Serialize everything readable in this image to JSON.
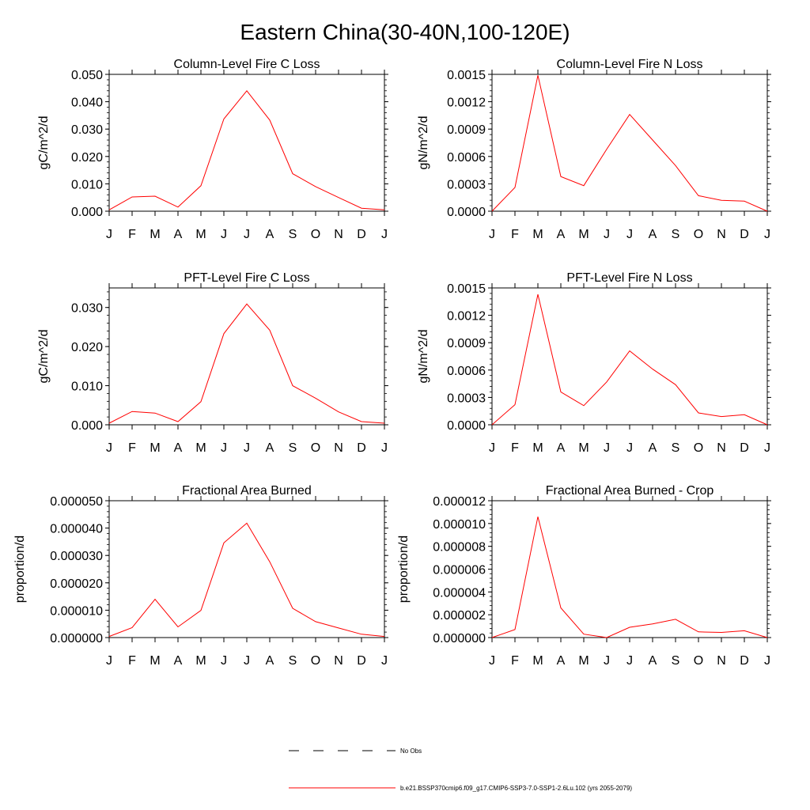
{
  "page_title": "Eastern China(30-40N,100-120E)",
  "legend": {
    "entries": [
      {
        "label": "No Obs",
        "color": "#000000",
        "style": "dashed"
      },
      {
        "label": "b.e21.BSSP370cmip6.f09_g17.CMIP6-SSP3-7.0-SSP1-2.6Lu.102 (yrs 2055-2079)",
        "color": "#ff0000",
        "style": "solid"
      }
    ]
  },
  "chart_data": [
    {
      "type": "line",
      "title": "Column-Level Fire C Loss",
      "ylabel": "gC/m^2/d",
      "xlabel": "",
      "ylim": [
        0,
        0.05
      ],
      "yticks": [
        0,
        0.01,
        0.02,
        0.03,
        0.04,
        0.05
      ],
      "ytick_labels": [
        "0.000",
        "0.010",
        "0.020",
        "0.030",
        "0.040",
        "0.050"
      ],
      "categories": [
        "J",
        "F",
        "M",
        "A",
        "M",
        "J",
        "J",
        "A",
        "S",
        "O",
        "N",
        "D",
        "J"
      ],
      "series": [
        {
          "color": "#ff0000",
          "values": [
            0.0005,
            0.0052,
            0.0055,
            0.0015,
            0.0093,
            0.0337,
            0.044,
            0.0333,
            0.0137,
            0.009,
            0.005,
            0.0011,
            0.0005
          ]
        }
      ]
    },
    {
      "type": "line",
      "title": "Column-Level Fire N Loss",
      "ylabel": "gN/m^2/d",
      "xlabel": "",
      "ylim": [
        0,
        0.0015
      ],
      "yticks": [
        0,
        0.0003,
        0.0006,
        0.0009,
        0.0012,
        0.0015
      ],
      "ytick_labels": [
        "0.0000",
        "0.0003",
        "0.0006",
        "0.0009",
        "0.0012",
        "0.0015"
      ],
      "categories": [
        "J",
        "F",
        "M",
        "A",
        "M",
        "J",
        "J",
        "A",
        "S",
        "O",
        "N",
        "D",
        "J"
      ],
      "series": [
        {
          "color": "#ff0000",
          "values": [
            0.0,
            0.00026,
            0.00149,
            0.00038,
            0.00028,
            0.00068,
            0.00106,
            0.00078,
            0.0005,
            0.00017,
            0.00012,
            0.00011,
            0.0
          ]
        }
      ]
    },
    {
      "type": "line",
      "title": "PFT-Level Fire C Loss",
      "ylabel": "gC/m^2/d",
      "xlabel": "",
      "ylim": [
        0,
        0.035
      ],
      "yticks": [
        0,
        0.01,
        0.02,
        0.03
      ],
      "ytick_labels": [
        "0.000",
        "0.010",
        "0.020",
        "0.030"
      ],
      "categories": [
        "J",
        "F",
        "M",
        "A",
        "M",
        "J",
        "J",
        "A",
        "S",
        "O",
        "N",
        "D",
        "J"
      ],
      "series": [
        {
          "color": "#ff0000",
          "values": [
            0.0004,
            0.0034,
            0.003,
            0.0008,
            0.0059,
            0.0233,
            0.0309,
            0.0242,
            0.01,
            0.0068,
            0.0033,
            0.0008,
            0.0004
          ]
        }
      ]
    },
    {
      "type": "line",
      "title": "PFT-Level Fire N Loss",
      "ylabel": "gN/m^2/d",
      "xlabel": "",
      "ylim": [
        0,
        0.0015
      ],
      "yticks": [
        0,
        0.0003,
        0.0006,
        0.0009,
        0.0012,
        0.0015
      ],
      "ytick_labels": [
        "0.0000",
        "0.0003",
        "0.0006",
        "0.0009",
        "0.0012",
        "0.0015"
      ],
      "categories": [
        "J",
        "F",
        "M",
        "A",
        "M",
        "J",
        "J",
        "A",
        "S",
        "O",
        "N",
        "D",
        "J"
      ],
      "series": [
        {
          "color": "#ff0000",
          "values": [
            0.0,
            0.00022,
            0.00143,
            0.00036,
            0.00021,
            0.00047,
            0.00081,
            0.00061,
            0.00044,
            0.00013,
            9e-05,
            0.00011,
            0.0
          ]
        }
      ]
    },
    {
      "type": "line",
      "title": "Fractional Area Burned",
      "ylabel": "proportion/d",
      "xlabel": "",
      "ylim": [
        0,
        5e-05
      ],
      "yticks": [
        0,
        1e-05,
        2e-05,
        3e-05,
        4e-05,
        5e-05
      ],
      "ytick_labels": [
        "0.000000",
        "0.000010",
        "0.000020",
        "0.000030",
        "0.000040",
        "0.000050"
      ],
      "categories": [
        "J",
        "F",
        "M",
        "A",
        "M",
        "J",
        "J",
        "A",
        "S",
        "O",
        "N",
        "D",
        "J"
      ],
      "series": [
        {
          "color": "#ff0000",
          "values": [
            4e-07,
            3.6e-06,
            1.4e-05,
            3.9e-06,
            9.9e-06,
            3.46e-05,
            4.18e-05,
            2.77e-05,
            1.07e-05,
            5.8e-06,
            3.5e-06,
            1.2e-06,
            4e-07
          ]
        }
      ]
    },
    {
      "type": "line",
      "title": "Fractional Area Burned - Crop",
      "ylabel": "proportion/d",
      "xlabel": "",
      "ylim": [
        0,
        1.2e-05
      ],
      "yticks": [
        0,
        2e-06,
        4e-06,
        6e-06,
        8e-06,
        1e-05,
        1.2e-05
      ],
      "ytick_labels": [
        "0.000000",
        "0.000002",
        "0.000004",
        "0.000006",
        "0.000008",
        "0.000010",
        "0.000012"
      ],
      "categories": [
        "J",
        "F",
        "M",
        "A",
        "M",
        "J",
        "J",
        "A",
        "S",
        "O",
        "N",
        "D",
        "J"
      ],
      "series": [
        {
          "color": "#ff0000",
          "values": [
            0.0,
            7e-07,
            1.06e-05,
            2.6e-06,
            3e-07,
            0.0,
            9e-07,
            1.2e-06,
            1.6e-06,
            5e-07,
            4.5e-07,
            6e-07,
            0.0
          ]
        }
      ]
    }
  ]
}
